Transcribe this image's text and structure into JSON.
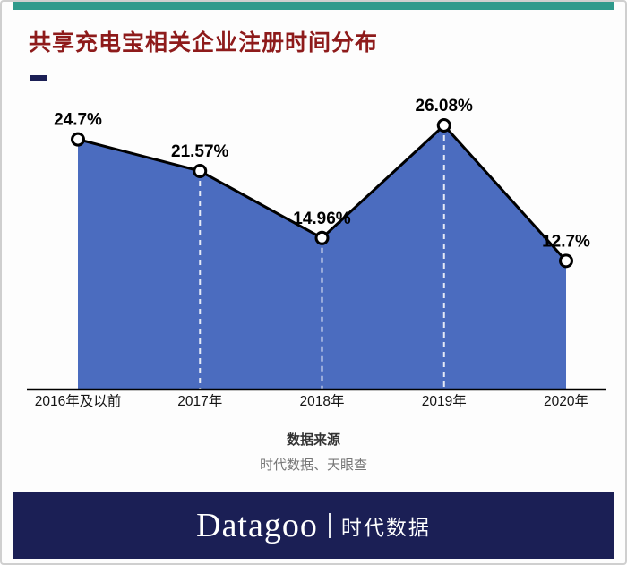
{
  "page": {
    "title": "共享充电宝相关企业注册时间分布",
    "source_label": "数据来源",
    "source_text": "时代数据、天眼查",
    "footer_brand": "Datagoo",
    "footer_cn": "时代数据"
  },
  "colors": {
    "top_bar_teal": "#2f9a8c",
    "title_red": "#8e1b1b",
    "accent_navy": "#1b1f55",
    "footer_navy": "#1b1f55",
    "area_blue": "#4b6cbf",
    "line_black": "#000000"
  },
  "chart_data": {
    "type": "area",
    "title": "共享充电宝相关企业注册时间分布",
    "categories": [
      "2016年及以前",
      "2017年",
      "2018年",
      "2019年",
      "2020年"
    ],
    "values": [
      24.7,
      21.57,
      14.96,
      26.08,
      12.7
    ],
    "value_labels": [
      "24.7%",
      "21.57%",
      "14.96%",
      "26.08%",
      "12.7%"
    ],
    "xlabel": "",
    "ylabel": "",
    "ylim": [
      0,
      26.08
    ],
    "grid": false,
    "legend": false,
    "marker": "open-circle",
    "area_color": "#4b6cbf",
    "line_color": "#000000"
  }
}
